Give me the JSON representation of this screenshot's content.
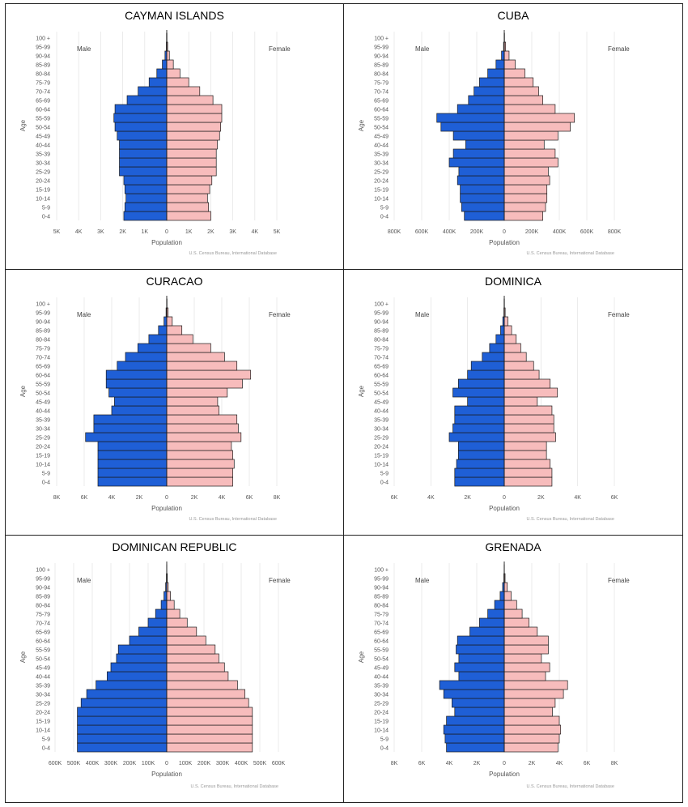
{
  "chart_data": [
    {
      "type": "bar",
      "title": "CAYMAN ISLANDS",
      "categories": [
        "0-4",
        "5-9",
        "10-14",
        "15-19",
        "20-24",
        "25-29",
        "30-34",
        "35-39",
        "40-44",
        "45-49",
        "50-54",
        "55-59",
        "60-64",
        "65-69",
        "70-74",
        "75-79",
        "80-84",
        "85-89",
        "90-94",
        "95-99",
        "100 +"
      ],
      "series": [
        {
          "name": "Male",
          "values": [
            1.95,
            1.9,
            1.85,
            1.9,
            1.95,
            2.15,
            2.15,
            2.15,
            2.15,
            2.25,
            2.35,
            2.4,
            2.35,
            1.8,
            1.3,
            0.8,
            0.45,
            0.2,
            0.08,
            0.02,
            0.01
          ]
        },
        {
          "name": "Female",
          "values": [
            2.0,
            1.9,
            1.85,
            1.95,
            2.05,
            2.25,
            2.25,
            2.25,
            2.3,
            2.4,
            2.45,
            2.5,
            2.5,
            2.1,
            1.5,
            1.0,
            0.6,
            0.3,
            0.12,
            0.04,
            0.01
          ]
        }
      ],
      "xticks": [
        "5K",
        "4K",
        "3K",
        "2K",
        "1K",
        "0",
        "1K",
        "2K",
        "3K",
        "4K",
        "5K"
      ],
      "xmax": 5,
      "xlabel": "Population",
      "ylabel": "Age",
      "left_label": "Male",
      "right_label": "Female",
      "credit": "U.S. Census Bureau, International Database",
      "male_color": "#1f5fd6",
      "female_color": "#f7bcbc"
    },
    {
      "type": "bar",
      "title": "CUBA",
      "categories": [
        "0-4",
        "5-9",
        "10-14",
        "15-19",
        "20-24",
        "25-29",
        "30-34",
        "35-39",
        "40-44",
        "45-49",
        "50-54",
        "55-59",
        "60-64",
        "65-69",
        "70-74",
        "75-79",
        "80-84",
        "85-89",
        "90-94",
        "95-99",
        "100 +"
      ],
      "series": [
        {
          "name": "Male",
          "values": [
            290,
            310,
            320,
            320,
            340,
            330,
            400,
            370,
            280,
            370,
            460,
            490,
            340,
            260,
            220,
            180,
            120,
            60,
            20,
            5,
            1
          ]
        },
        {
          "name": "Female",
          "values": [
            280,
            300,
            310,
            310,
            330,
            320,
            390,
            370,
            290,
            390,
            480,
            510,
            370,
            280,
            250,
            210,
            150,
            80,
            35,
            10,
            2
          ]
        }
      ],
      "xticks": [
        "800K",
        "600K",
        "400K",
        "200K",
        "0",
        "200K",
        "400K",
        "600K",
        "800K"
      ],
      "xmax": 800,
      "xlabel": "Population",
      "ylabel": "Age",
      "left_label": "Male",
      "right_label": "Female",
      "credit": "U.S. Census Bureau, International Database",
      "male_color": "#1f5fd6",
      "female_color": "#f7bcbc"
    },
    {
      "type": "bar",
      "title": "CURACAO",
      "categories": [
        "0-4",
        "5-9",
        "10-14",
        "15-19",
        "20-24",
        "25-29",
        "30-34",
        "35-39",
        "40-44",
        "45-49",
        "50-54",
        "55-59",
        "60-64",
        "65-69",
        "70-74",
        "75-79",
        "80-84",
        "85-89",
        "90-94",
        "95-99",
        "100 +"
      ],
      "series": [
        {
          "name": "Male",
          "values": [
            5.0,
            5.0,
            5.0,
            5.0,
            5.0,
            5.9,
            5.3,
            5.3,
            4.0,
            3.8,
            4.2,
            4.4,
            4.4,
            3.6,
            3.0,
            2.1,
            1.3,
            0.6,
            0.2,
            0.05,
            0.01
          ]
        },
        {
          "name": "Female",
          "values": [
            4.8,
            4.8,
            4.9,
            4.8,
            4.7,
            5.4,
            5.2,
            5.1,
            3.8,
            3.7,
            4.4,
            5.5,
            6.1,
            5.1,
            4.2,
            3.2,
            1.9,
            1.1,
            0.4,
            0.1,
            0.02
          ]
        }
      ],
      "xticks": [
        "8K",
        "6K",
        "4K",
        "2K",
        "0",
        "2K",
        "4K",
        "6K",
        "8K"
      ],
      "xmax": 8,
      "xlabel": "Population",
      "ylabel": "Age",
      "left_label": "Male",
      "right_label": "Female",
      "credit": "U.S. Census Bureau, International Database",
      "male_color": "#1f5fd6",
      "female_color": "#f7bcbc"
    },
    {
      "type": "bar",
      "title": "DOMINICA",
      "categories": [
        "0-4",
        "5-9",
        "10-14",
        "15-19",
        "20-24",
        "25-29",
        "30-34",
        "35-39",
        "40-44",
        "45-49",
        "50-54",
        "55-59",
        "60-64",
        "65-69",
        "70-74",
        "75-79",
        "80-84",
        "85-89",
        "90-94",
        "95-99",
        "100 +"
      ],
      "series": [
        {
          "name": "Male",
          "values": [
            2.7,
            2.7,
            2.6,
            2.5,
            2.5,
            3.0,
            2.8,
            2.7,
            2.7,
            2.0,
            2.8,
            2.5,
            2.0,
            1.8,
            1.2,
            0.8,
            0.45,
            0.2,
            0.08,
            0.02,
            0.01
          ]
        },
        {
          "name": "Female",
          "values": [
            2.6,
            2.6,
            2.5,
            2.3,
            2.3,
            2.8,
            2.7,
            2.7,
            2.6,
            1.8,
            2.9,
            2.5,
            1.9,
            1.6,
            1.2,
            0.9,
            0.65,
            0.4,
            0.2,
            0.05,
            0.01
          ]
        }
      ],
      "xticks": [
        "6K",
        "4K",
        "2K",
        "0",
        "2K",
        "4K",
        "6K"
      ],
      "xmax": 6,
      "xlabel": "Population",
      "ylabel": "Age",
      "left_label": "Male",
      "right_label": "Female",
      "credit": "U.S. Census Bureau, International Database",
      "male_color": "#1f5fd6",
      "female_color": "#f7bcbc"
    },
    {
      "type": "bar",
      "title": "DOMINICAN REPUBLIC",
      "categories": [
        "0-4",
        "5-9",
        "10-14",
        "15-19",
        "20-24",
        "25-29",
        "30-34",
        "35-39",
        "40-44",
        "45-49",
        "50-54",
        "55-59",
        "60-64",
        "65-69",
        "70-74",
        "75-79",
        "80-84",
        "85-89",
        "90-94",
        "95-99",
        "100 +"
      ],
      "series": [
        {
          "name": "Male",
          "values": [
            480,
            480,
            480,
            480,
            480,
            460,
            430,
            380,
            320,
            300,
            270,
            260,
            200,
            150,
            100,
            60,
            30,
            15,
            6,
            2,
            0.5
          ]
        },
        {
          "name": "Female",
          "values": [
            460,
            460,
            460,
            460,
            460,
            440,
            420,
            380,
            330,
            310,
            280,
            260,
            210,
            160,
            110,
            70,
            40,
            20,
            8,
            3,
            0.5
          ]
        }
      ],
      "xticks": [
        "600K",
        "500K",
        "400K",
        "300K",
        "200K",
        "100K",
        "0",
        "100K",
        "200K",
        "300K",
        "400K",
        "500K",
        "600K"
      ],
      "xmax": 600,
      "xlabel": "Population",
      "ylabel": "Age",
      "left_label": "Male",
      "right_label": "Female",
      "credit": "U.S. Census Bureau, International Database",
      "male_color": "#1f5fd6",
      "female_color": "#f7bcbc"
    },
    {
      "type": "bar",
      "title": "GRENADA",
      "categories": [
        "0-4",
        "5-9",
        "10-14",
        "15-19",
        "20-24",
        "25-29",
        "30-34",
        "35-39",
        "40-44",
        "45-49",
        "50-54",
        "55-59",
        "60-64",
        "65-69",
        "70-74",
        "75-79",
        "80-84",
        "85-89",
        "90-94",
        "95-99",
        "100 +"
      ],
      "series": [
        {
          "name": "Male",
          "values": [
            4.2,
            4.3,
            4.4,
            4.2,
            3.6,
            3.8,
            4.4,
            4.7,
            3.3,
            3.6,
            3.3,
            3.5,
            3.4,
            2.5,
            1.8,
            1.2,
            0.7,
            0.3,
            0.12,
            0.03,
            0.01
          ]
        },
        {
          "name": "Female",
          "values": [
            3.9,
            4.0,
            4.1,
            4.0,
            3.5,
            3.7,
            4.3,
            4.6,
            3.0,
            3.3,
            2.7,
            3.2,
            3.2,
            2.4,
            1.8,
            1.3,
            0.9,
            0.5,
            0.22,
            0.06,
            0.01
          ]
        }
      ],
      "xticks": [
        "8K",
        "6K",
        "4K",
        "2K",
        "0",
        "2K",
        "4K",
        "6K",
        "8K"
      ],
      "xmax": 8,
      "xlabel": "Population",
      "ylabel": "Age",
      "left_label": "Male",
      "right_label": "Female",
      "credit": "U.S. Census Bureau, International Database",
      "male_color": "#1f5fd6",
      "female_color": "#f7bcbc"
    }
  ]
}
